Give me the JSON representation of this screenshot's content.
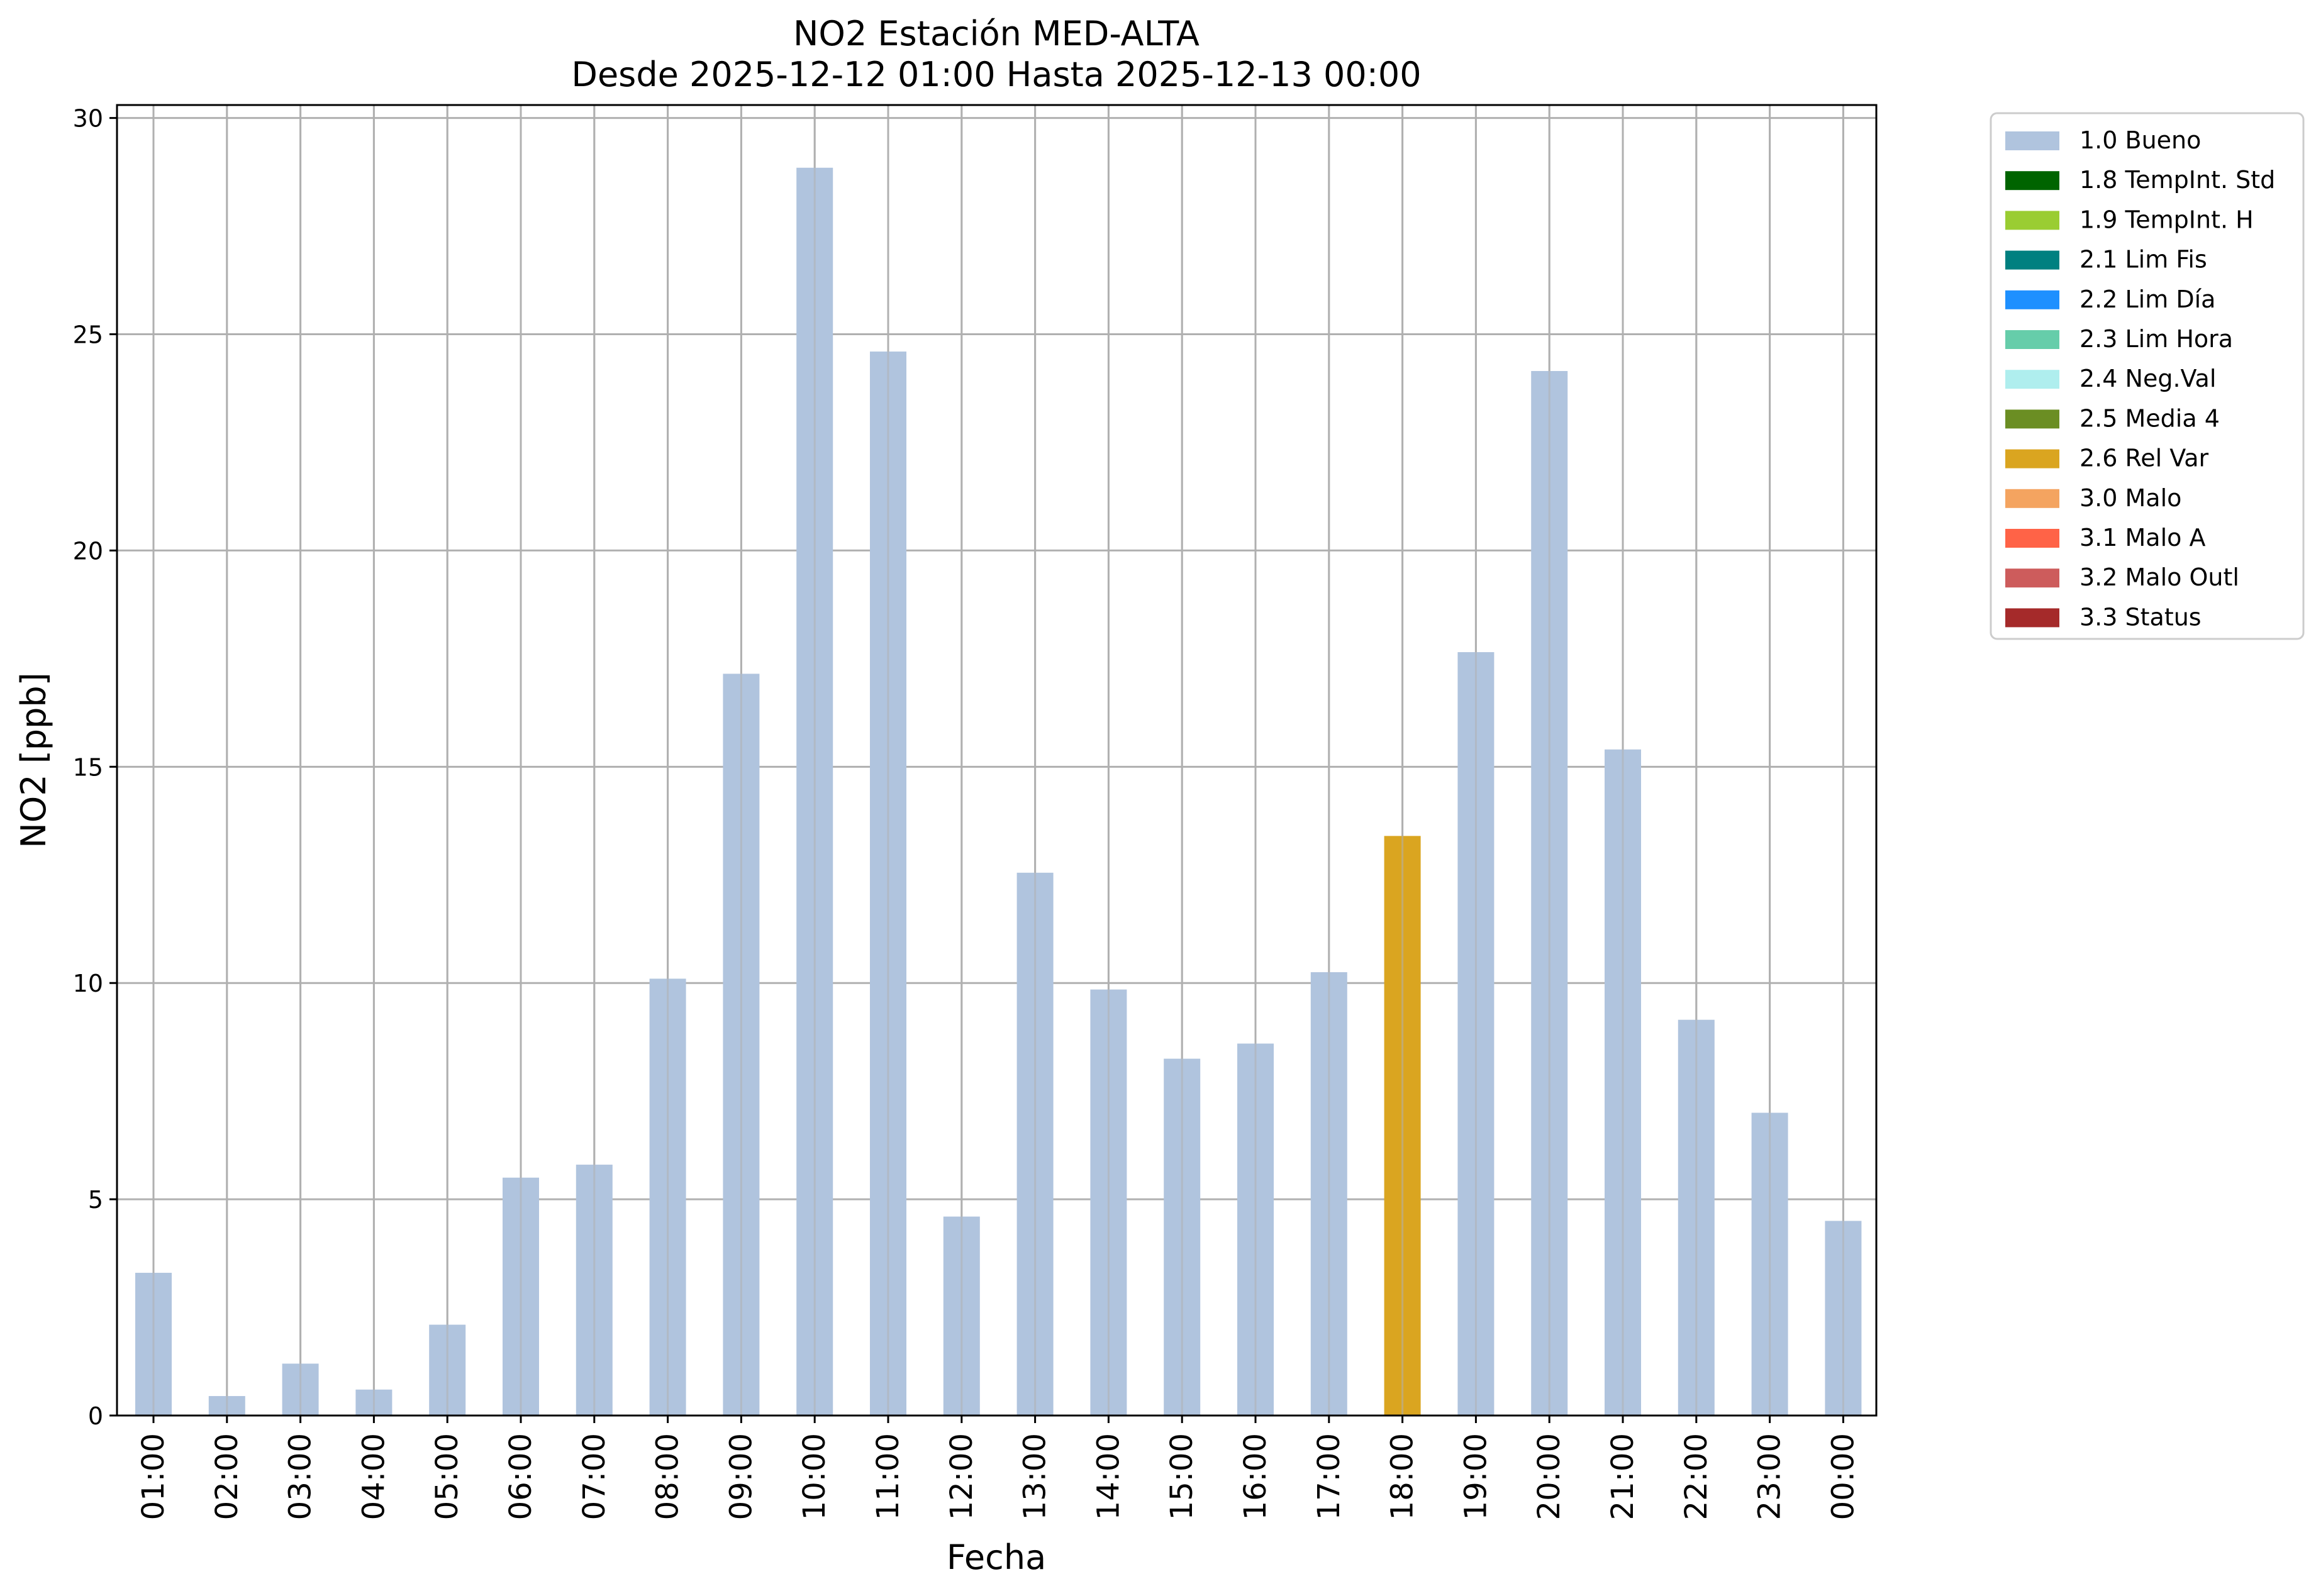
{
  "chart_data": {
    "type": "bar",
    "title": "NO2 Estación MED-ALTA",
    "subtitle": "Desde 2025-12-12 01:00 Hasta 2025-12-13 00:00",
    "xlabel": "Fecha",
    "ylabel": "NO2 [ppb]",
    "ylim": [
      0,
      30.3
    ],
    "yticks": [
      0,
      5,
      10,
      15,
      20,
      25,
      30
    ],
    "grid": true,
    "legend_position": "outside-top-right",
    "categories": [
      "01:00",
      "02:00",
      "03:00",
      "04:00",
      "05:00",
      "06:00",
      "07:00",
      "08:00",
      "09:00",
      "10:00",
      "11:00",
      "12:00",
      "13:00",
      "14:00",
      "15:00",
      "16:00",
      "17:00",
      "18:00",
      "19:00",
      "20:00",
      "21:00",
      "22:00",
      "23:00",
      "00:00"
    ],
    "values": [
      3.3,
      0.45,
      1.2,
      0.6,
      2.1,
      5.5,
      5.8,
      10.1,
      17.15,
      28.85,
      24.6,
      4.6,
      12.55,
      9.85,
      8.25,
      8.6,
      10.25,
      13.4,
      17.65,
      24.15,
      15.4,
      9.15,
      7.0,
      4.5
    ],
    "quality_flags": [
      "1.0 Bueno",
      "1.0 Bueno",
      "1.0 Bueno",
      "1.0 Bueno",
      "1.0 Bueno",
      "1.0 Bueno",
      "1.0 Bueno",
      "1.0 Bueno",
      "1.0 Bueno",
      "1.0 Bueno",
      "1.0 Bueno",
      "1.0 Bueno",
      "1.0 Bueno",
      "1.0 Bueno",
      "1.0 Bueno",
      "1.0 Bueno",
      "1.0 Bueno",
      "2.6 Rel Var",
      "1.0 Bueno",
      "1.0 Bueno",
      "1.0 Bueno",
      "1.0 Bueno",
      "1.0 Bueno",
      "1.0 Bueno"
    ],
    "legend": [
      {
        "name": "1.0 Bueno",
        "color": "#b0c4de"
      },
      {
        "name": "1.8 TempInt. Std",
        "color": "#006400"
      },
      {
        "name": "1.9 TempInt. H",
        "color": "#9acd32"
      },
      {
        "name": "2.1 Lim Fis",
        "color": "#008080"
      },
      {
        "name": "2.2 Lim Día",
        "color": "#1e90ff"
      },
      {
        "name": "2.3 Lim Hora",
        "color": "#66cdaa"
      },
      {
        "name": "2.4 Neg.Val",
        "color": "#afeeee"
      },
      {
        "name": "2.5 Media 4",
        "color": "#6b8e23"
      },
      {
        "name": "2.6 Rel Var",
        "color": "#daa520"
      },
      {
        "name": "3.0 Malo",
        "color": "#f4a460"
      },
      {
        "name": "3.1 Malo A",
        "color": "#ff6347"
      },
      {
        "name": "3.2 Malo Outl",
        "color": "#cd5c5c"
      },
      {
        "name": "3.3 Status",
        "color": "#a52a2a"
      }
    ]
  }
}
